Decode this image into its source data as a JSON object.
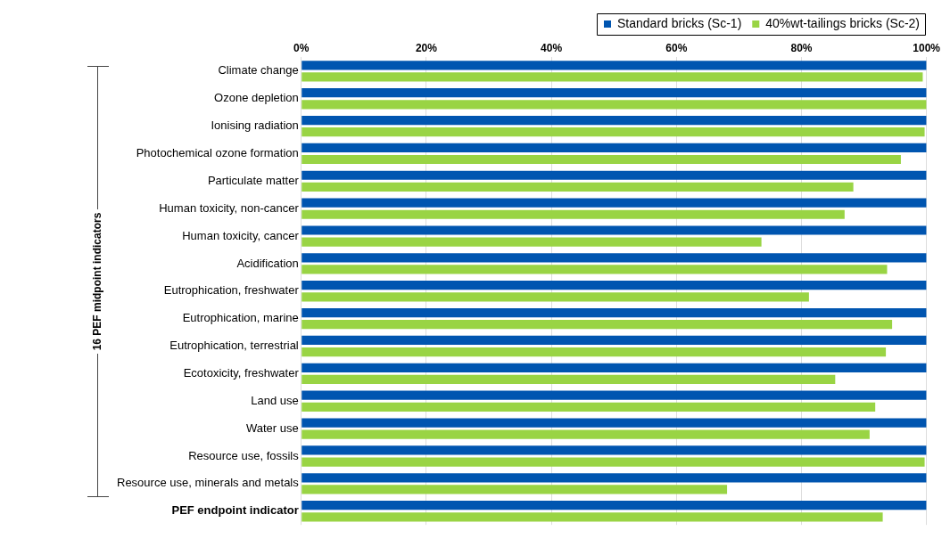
{
  "chart_data": {
    "type": "bar",
    "orientation": "horizontal",
    "categories": [
      "Climate change",
      "Ozone depletion",
      "Ionising radiation",
      "Photochemical ozone formation",
      "Particulate matter",
      "Human toxicity, non-cancer",
      "Human toxicity, cancer",
      "Acidification",
      "Eutrophication, freshwater",
      "Eutrophication, marine",
      "Eutrophication, terrestrial",
      "Ecotoxicity, freshwater",
      "Land use",
      "Water use",
      "Resource use, fossils",
      "Resource use, minerals and metals",
      "PEF endpoint indicator"
    ],
    "series": [
      {
        "name": "Standard bricks (Sc-1)",
        "color": "#0055b0",
        "values": [
          100,
          100,
          100,
          100,
          100,
          100,
          100,
          100,
          100,
          100,
          100,
          100,
          100,
          100,
          100,
          100,
          100
        ]
      },
      {
        "name": "40%wt-tailings bricks (Sc-2)",
        "color": "#99d444",
        "values": [
          99.4,
          100,
          99.7,
          95.9,
          88.3,
          86.9,
          73.6,
          93.7,
          81.2,
          94.5,
          93.5,
          85.4,
          91.8,
          90.9,
          99.7,
          68.1,
          93.0
        ]
      }
    ],
    "xlim": [
      0,
      100
    ],
    "xticks": [
      {
        "value": 0,
        "label": "0%"
      },
      {
        "value": 20,
        "label": "20%"
      },
      {
        "value": 40,
        "label": "40%"
      },
      {
        "value": 60,
        "label": "60%"
      },
      {
        "value": 80,
        "label": "80%"
      },
      {
        "value": 100,
        "label": "100%"
      }
    ],
    "grid": "x",
    "legend": "top right",
    "annotations": [
      "16 PEF midpoint indicators"
    ]
  }
}
